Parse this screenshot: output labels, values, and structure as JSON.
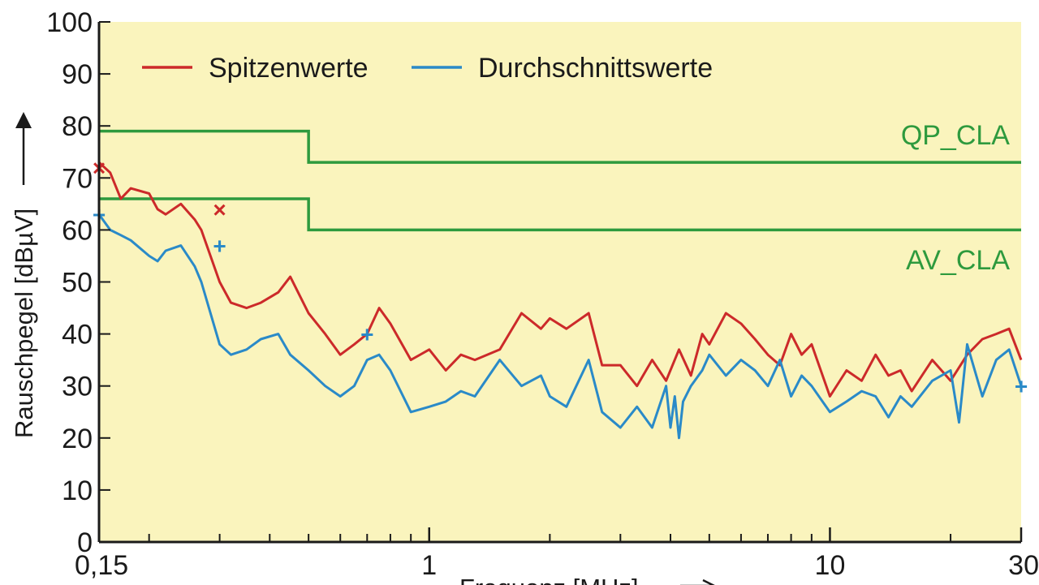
{
  "chart_data": {
    "type": "line",
    "xscale": "log",
    "xlim": [
      0.15,
      30
    ],
    "ylim": [
      0,
      100
    ],
    "grid": false,
    "legend_position": "top-left",
    "background_color": "#faf4bd",
    "xlabel": "Frequenz [MHz]",
    "ylabel": "Rauschpegel [dBµV]",
    "xticks": [
      {
        "value": 0.15,
        "label": "0,15"
      },
      {
        "value": 1,
        "label": "1"
      },
      {
        "value": 10,
        "label": "10"
      },
      {
        "value": 30,
        "label": "30"
      }
    ],
    "yticks": [
      0,
      10,
      20,
      30,
      40,
      50,
      60,
      70,
      80,
      90,
      100
    ],
    "series": [
      {
        "name": "Spitzenwerte",
        "color": "#cc2a2a",
        "x": [
          0.15,
          0.16,
          0.17,
          0.18,
          0.2,
          0.21,
          0.22,
          0.24,
          0.26,
          0.27,
          0.3,
          0.32,
          0.35,
          0.38,
          0.42,
          0.45,
          0.5,
          0.55,
          0.6,
          0.65,
          0.7,
          0.75,
          0.8,
          0.9,
          1.0,
          1.1,
          1.2,
          1.3,
          1.5,
          1.7,
          1.9,
          2.0,
          2.2,
          2.5,
          2.7,
          3.0,
          3.3,
          3.6,
          3.9,
          4.2,
          4.5,
          4.8,
          5.0,
          5.5,
          6.0,
          6.5,
          7.0,
          7.5,
          8.0,
          8.5,
          9.0,
          10.0,
          11.0,
          12.0,
          13.0,
          14.0,
          15.0,
          16.0,
          18.0,
          20.0,
          22.0,
          24.0,
          26.0,
          28.0,
          30.0
        ],
        "values": [
          73,
          71,
          66,
          68,
          67,
          64,
          63,
          65,
          62,
          60,
          50,
          46,
          45,
          46,
          48,
          51,
          44,
          40,
          36,
          38,
          40,
          45,
          42,
          35,
          37,
          33,
          36,
          35,
          37,
          44,
          41,
          43,
          41,
          44,
          34,
          34,
          30,
          35,
          31,
          37,
          32,
          40,
          38,
          44,
          42,
          39,
          36,
          34,
          40,
          36,
          38,
          28,
          33,
          31,
          36,
          32,
          33,
          29,
          35,
          31,
          36,
          39,
          40,
          41,
          35
        ]
      },
      {
        "name": "Durchschnittswerte",
        "color": "#2a8ac8",
        "x": [
          0.15,
          0.16,
          0.17,
          0.18,
          0.2,
          0.21,
          0.22,
          0.24,
          0.26,
          0.27,
          0.3,
          0.32,
          0.35,
          0.38,
          0.42,
          0.45,
          0.5,
          0.55,
          0.6,
          0.65,
          0.7,
          0.75,
          0.8,
          0.9,
          1.0,
          1.1,
          1.2,
          1.3,
          1.5,
          1.7,
          1.9,
          2.0,
          2.2,
          2.5,
          2.7,
          3.0,
          3.3,
          3.6,
          3.9,
          4.0,
          4.1,
          4.2,
          4.3,
          4.5,
          4.8,
          5.0,
          5.5,
          6.0,
          6.5,
          7.0,
          7.5,
          8.0,
          8.5,
          9.0,
          10.0,
          11.0,
          12.0,
          13.0,
          14.0,
          15.0,
          16.0,
          18.0,
          20.0,
          21.0,
          22.0,
          24.0,
          26.0,
          28.0,
          30.0
        ],
        "values": [
          63,
          60,
          59,
          58,
          55,
          54,
          56,
          57,
          53,
          50,
          38,
          36,
          37,
          39,
          40,
          36,
          33,
          30,
          28,
          30,
          35,
          36,
          33,
          25,
          26,
          27,
          29,
          28,
          35,
          30,
          32,
          28,
          26,
          35,
          25,
          22,
          26,
          22,
          30,
          22,
          28,
          20,
          27,
          30,
          33,
          36,
          32,
          35,
          33,
          30,
          35,
          28,
          32,
          30,
          25,
          27,
          29,
          28,
          24,
          28,
          26,
          31,
          33,
          23,
          38,
          28,
          35,
          37,
          30
        ]
      }
    ],
    "limits": [
      {
        "name": "QP_CLA",
        "color": "#2e9a3e",
        "segments": [
          {
            "x": [
              0.15,
              0.5
            ],
            "y": 79
          },
          {
            "x": [
              0.5,
              30
            ],
            "y": 73
          }
        ]
      },
      {
        "name": "AV_CLA",
        "color": "#2e9a3e",
        "segments": [
          {
            "x": [
              0.15,
              0.5
            ],
            "y": 66
          },
          {
            "x": [
              0.5,
              30
            ],
            "y": 60
          }
        ]
      }
    ],
    "markers": [
      {
        "series": "Spitzenwerte",
        "symbol": "×",
        "x": 0.15,
        "y": 72
      },
      {
        "series": "Spitzenwerte",
        "symbol": "×",
        "x": 0.3,
        "y": 64
      },
      {
        "series": "Durchschnittswerte",
        "symbol": "+",
        "x": 0.15,
        "y": 63
      },
      {
        "series": "Durchschnittswerte",
        "symbol": "+",
        "x": 0.3,
        "y": 57
      },
      {
        "series": "Durchschnittswerte",
        "symbol": "+",
        "x": 0.7,
        "y": 40
      },
      {
        "series": "Durchschnittswerte",
        "symbol": "+",
        "x": 30,
        "y": 30
      }
    ]
  }
}
